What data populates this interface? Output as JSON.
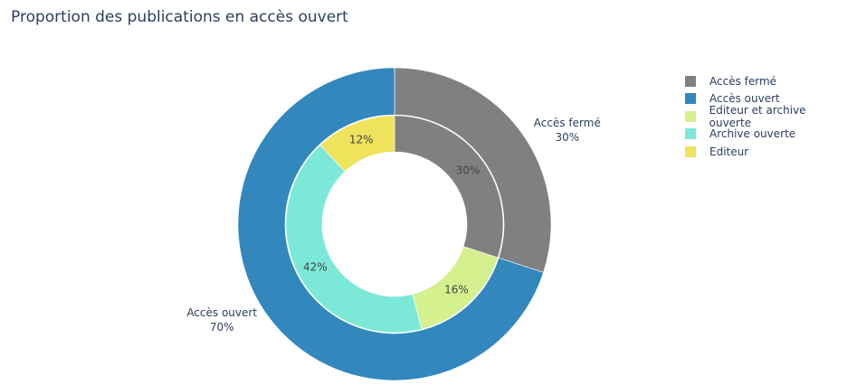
{
  "chart_data": {
    "type": "pie",
    "title": "Proportion des publications en accès ouvert",
    "outer_ring": [
      {
        "label": "Accès fermé",
        "value": 30,
        "text": "30%",
        "color": "#808080",
        "label_position": "outside"
      },
      {
        "label": "Accès ouvert",
        "value": 70,
        "text": "70%",
        "color": "#3288bd",
        "label_position": "outside"
      }
    ],
    "inner_ring": [
      {
        "label": "Accès fermé",
        "value": 30,
        "text": "30%",
        "color": "#808080"
      },
      {
        "label": "Editeur et archive ouverte",
        "value": 16,
        "text": "16%",
        "color": "#d5f08e"
      },
      {
        "label": "Archive ouverte",
        "value": 42,
        "text": "42%",
        "color": "#7ce8d8"
      },
      {
        "label": "Editeur",
        "value": 12,
        "text": "12%",
        "color": "#f0e35c"
      }
    ],
    "legend": {
      "placement": "right",
      "items": [
        {
          "label": "Accès fermé",
          "color": "#808080"
        },
        {
          "label": "Accès ouvert",
          "color": "#3288bd"
        },
        {
          "label": "Editeur et archive ouverte",
          "color": "#d5f08e"
        },
        {
          "label": "Archive ouverte",
          "color": "#7ce8d8"
        },
        {
          "label": "Editeur",
          "color": "#f0e35c"
        }
      ]
    }
  }
}
